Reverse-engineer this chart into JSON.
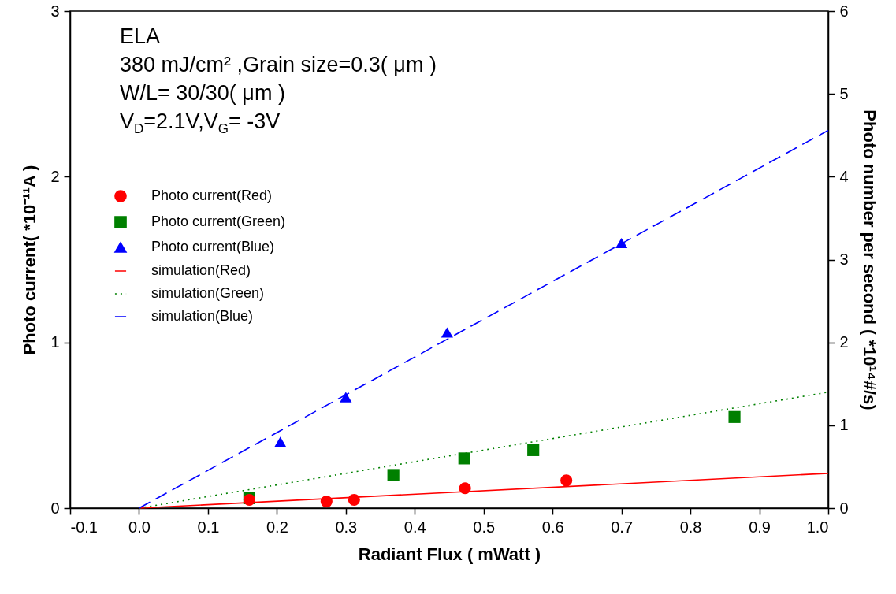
{
  "chart_data": {
    "type": "scatter",
    "xlabel": "Radiant Flux ( mWatt )",
    "ylabel": "Photo current( *10⁻¹¹A )",
    "y2label": "Photo number per second ( *10¹⁴#/s)",
    "annotations": [
      "ELA",
      "380 mJ/cm² ,Grain size=0.3( μm )",
      "W/L= 30/30( μm )",
      "V$_{D}$=2.1V,V$_{G}$= -3V"
    ],
    "xlim": [
      -0.1,
      1.0
    ],
    "xticks": [
      {
        "value": -0.1,
        "label": "-0.1"
      },
      {
        "value": 0,
        "label": "0.0"
      },
      {
        "value": 0.1,
        "label": "0.1"
      },
      {
        "value": 0.2,
        "label": "0.2"
      },
      {
        "value": 0.3,
        "label": "0.3"
      },
      {
        "value": 0.4,
        "label": "0.4"
      },
      {
        "value": 0.5,
        "label": "0.5"
      },
      {
        "value": 0.6,
        "label": "0.6"
      },
      {
        "value": 0.7,
        "label": "0.7"
      },
      {
        "value": 0.8,
        "label": "0.8"
      },
      {
        "value": 0.9,
        "label": "0.9"
      },
      {
        "value": 1.0,
        "label": "1.0"
      }
    ],
    "ylim": [
      0,
      3
    ],
    "yticks": [
      0,
      1,
      2,
      3
    ],
    "y2lim": [
      0,
      6
    ],
    "y2ticks": [
      0,
      1,
      2,
      3,
      4,
      5,
      6
    ],
    "grid": false,
    "legend": "top left",
    "series": [
      {
        "name": "Photo current(Red)",
        "type": "scatter",
        "marker": "circle",
        "color": "#ff0000",
        "x": [
          0.16,
          0.272,
          0.312,
          0.473,
          0.62
        ],
        "values": [
          0.05,
          0.04,
          0.05,
          0.12,
          0.167
        ]
      },
      {
        "name": "Photo current(Green)",
        "type": "scatter",
        "marker": "square",
        "color": "#008000",
        "x": [
          0.16,
          0.369,
          0.472,
          0.572,
          0.864
        ],
        "values": [
          0.06,
          0.2,
          0.3,
          0.35,
          0.55
        ]
      },
      {
        "name": "Photo current(Blue)",
        "type": "scatter",
        "marker": "triangle",
        "color": "#0000ff",
        "x": [
          0.205,
          0.3,
          0.447,
          0.7
        ],
        "values": [
          0.4,
          0.67,
          1.06,
          1.6
        ]
      },
      {
        "name": "simulation(Red)",
        "type": "line",
        "line_style": "solid",
        "color": "#ff0000",
        "x": [
          0,
          1.0
        ],
        "values": [
          0,
          0.21
        ]
      },
      {
        "name": "simulation(Green)",
        "type": "line",
        "line_style": "dotted",
        "color": "#008000",
        "x": [
          0,
          1.0
        ],
        "values": [
          0,
          0.7
        ]
      },
      {
        "name": "simulation(Blue)",
        "type": "line",
        "line_style": "dashed",
        "color": "#0000ff",
        "x": [
          0,
          1.0
        ],
        "values": [
          0,
          2.28
        ]
      }
    ]
  }
}
